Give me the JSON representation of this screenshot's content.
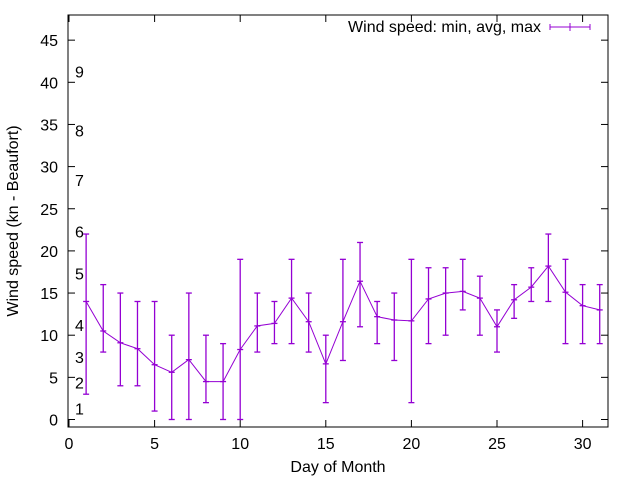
{
  "chart_data": {
    "type": "line",
    "subtype": "errorbars",
    "title": "",
    "xlabel": "Day of Month",
    "ylabel": "Wind speed (kn - Beaufort)",
    "xlim": [
      0,
      31.5
    ],
    "ylim": [
      -1,
      48
    ],
    "xticks": [
      0,
      5,
      10,
      15,
      20,
      25,
      30
    ],
    "yticks": [
      0,
      5,
      10,
      15,
      20,
      25,
      30,
      35,
      40,
      45
    ],
    "grid": false,
    "legend": "top-right",
    "color": "#9400d3",
    "series": [
      {
        "name": "Wind speed: min, avg, max",
        "x": [
          1,
          2,
          3,
          4,
          5,
          6,
          7,
          8,
          9,
          10,
          11,
          12,
          13,
          14,
          15,
          16,
          17,
          18,
          19,
          20,
          21,
          22,
          23,
          24,
          25,
          26,
          27,
          28,
          29,
          30,
          31
        ],
        "min": [
          3,
          8,
          4,
          4,
          1,
          0,
          0,
          2,
          0,
          0,
          8,
          9,
          9,
          8,
          2,
          7,
          11,
          9,
          7,
          2,
          9,
          10,
          13,
          10,
          8,
          12,
          14,
          14,
          9,
          9,
          9
        ],
        "avg": [
          14,
          10.5,
          9.1,
          8.4,
          6.5,
          5.6,
          7.1,
          4.5,
          4.5,
          8.3,
          11.1,
          11.4,
          14.4,
          11.6,
          6.6,
          11.6,
          16.4,
          12.2,
          11.8,
          11.7,
          14.3,
          15.0,
          15.2,
          14.4,
          11.0,
          14.2,
          15.7,
          18.2,
          15.1,
          13.5,
          13.0
        ],
        "max": [
          22,
          16,
          15,
          14,
          14,
          10,
          15,
          10,
          9,
          19,
          15,
          14,
          19,
          15,
          10,
          19,
          21,
          14,
          15,
          19,
          18,
          18,
          19,
          17,
          13,
          16,
          18,
          22,
          19,
          16,
          16
        ]
      }
    ],
    "annotations": [
      {
        "text": "1",
        "y": 1.3
      },
      {
        "text": "2",
        "y": 4.4
      },
      {
        "text": "3",
        "y": 7.4
      },
      {
        "text": "4",
        "y": 11.2
      },
      {
        "text": "5",
        "y": 17.3
      },
      {
        "text": "6",
        "y": 22.3
      },
      {
        "text": "7",
        "y": 28.4
      },
      {
        "text": "8",
        "y": 34.3
      },
      {
        "text": "9",
        "y": 41.3
      }
    ]
  }
}
